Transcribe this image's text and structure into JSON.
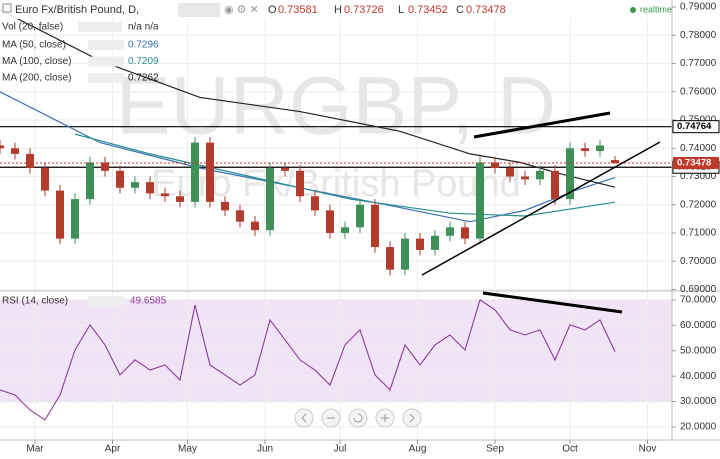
{
  "chart_data": [
    {
      "type": "candlestick",
      "title": "Euro Fx/British Pound, D,",
      "watermark": "EURGBP, D",
      "watermark_subtitle": "Euro Fx/British Pound",
      "status": "realtime",
      "ohlc_labels": [
        "O",
        "H",
        "L",
        "C"
      ],
      "up_color": "#3f8f58",
      "down_color": "#b23b2c",
      "x": [
        0,
        6,
        12,
        18,
        24,
        30,
        36,
        42,
        48,
        54,
        60,
        66,
        72,
        78,
        84,
        90,
        96,
        102,
        108,
        114,
        120,
        126,
        132,
        138,
        144,
        150,
        156,
        162,
        168,
        174,
        180,
        186,
        192,
        198,
        204,
        210,
        216,
        222,
        228,
        234,
        240,
        246
      ],
      "open": [
        0.741,
        0.74,
        0.738,
        0.733,
        0.725,
        0.708,
        0.722,
        0.735,
        0.732,
        0.726,
        0.728,
        0.724,
        0.723,
        0.721,
        0.742,
        0.721,
        0.718,
        0.714,
        0.711,
        0.733,
        0.732,
        0.723,
        0.718,
        0.71,
        0.712,
        0.72,
        0.705,
        0.697,
        0.708,
        0.704,
        0.709,
        0.712,
        0.708,
        0.735,
        0.733,
        0.73,
        0.729,
        0.732,
        0.722,
        0.74,
        0.739,
        0.73581
      ],
      "high": [
        0.743,
        0.742,
        0.74,
        0.735,
        0.727,
        0.724,
        0.737,
        0.737,
        0.734,
        0.73,
        0.73,
        0.726,
        0.725,
        0.744,
        0.744,
        0.723,
        0.72,
        0.716,
        0.735,
        0.735,
        0.734,
        0.725,
        0.72,
        0.714,
        0.722,
        0.722,
        0.707,
        0.71,
        0.71,
        0.711,
        0.714,
        0.714,
        0.737,
        0.737,
        0.735,
        0.732,
        0.734,
        0.734,
        0.742,
        0.742,
        0.743,
        0.73726
      ],
      "low": [
        0.738,
        0.736,
        0.731,
        0.723,
        0.706,
        0.706,
        0.72,
        0.73,
        0.724,
        0.724,
        0.722,
        0.721,
        0.719,
        0.719,
        0.719,
        0.716,
        0.712,
        0.709,
        0.709,
        0.73,
        0.721,
        0.716,
        0.708,
        0.708,
        0.71,
        0.703,
        0.695,
        0.695,
        0.702,
        0.702,
        0.707,
        0.706,
        0.706,
        0.731,
        0.728,
        0.727,
        0.727,
        0.72,
        0.72,
        0.737,
        0.737,
        0.73452
      ],
      "close": [
        0.74,
        0.738,
        0.733,
        0.725,
        0.708,
        0.722,
        0.735,
        0.732,
        0.726,
        0.728,
        0.724,
        0.723,
        0.721,
        0.742,
        0.721,
        0.718,
        0.714,
        0.711,
        0.733,
        0.732,
        0.723,
        0.718,
        0.71,
        0.712,
        0.72,
        0.705,
        0.697,
        0.708,
        0.704,
        0.709,
        0.712,
        0.708,
        0.735,
        0.733,
        0.73,
        0.729,
        0.732,
        0.722,
        0.74,
        0.739,
        0.741,
        0.73478
      ],
      "volume_indicator": {
        "name": "Vol (20, false)",
        "readout": "n/a n/a"
      },
      "series": [
        {
          "name": "MA (50, close)",
          "color": "#3b6fb6",
          "x": [
            0,
            40,
            80,
            120,
            160,
            188,
            210,
            230,
            246
          ],
          "values": [
            0.76,
            0.742,
            0.733,
            0.726,
            0.719,
            0.714,
            0.718,
            0.725,
            0.7296
          ]
        },
        {
          "name": "MA (100, close)",
          "color": "#2a8f8f",
          "x": [
            30,
            60,
            100,
            140,
            180,
            210,
            246
          ],
          "values": [
            0.745,
            0.738,
            0.73,
            0.722,
            0.717,
            0.716,
            0.7209
          ]
        },
        {
          "name": "MA (200, close)",
          "color": "#222222",
          "x": [
            0,
            40,
            80,
            120,
            160,
            188,
            208,
            224,
            246
          ],
          "values": [
            0.789,
            0.771,
            0.758,
            0.753,
            0.746,
            0.738,
            0.735,
            0.731,
            0.7262
          ]
        }
      ],
      "levels": [
        0.74764,
        0.73328
      ],
      "xlim": [
        0,
        268.8
      ],
      "ylim": [
        0.6898,
        0.7925
      ],
      "xticks": [
        {
          "value": 14,
          "label": "Mar"
        },
        {
          "value": 45,
          "label": "Apr"
        },
        {
          "value": 75,
          "label": "May"
        },
        {
          "value": 106,
          "label": "Jun"
        },
        {
          "value": 136,
          "label": "Jul"
        },
        {
          "value": 167,
          "label": "Aug"
        },
        {
          "value": 198,
          "label": "Sep"
        },
        {
          "value": 228,
          "label": "Oct"
        },
        {
          "value": 259,
          "label": "Nov"
        }
      ],
      "yticks": [
        {
          "value": 0.69,
          "label": "0.69000"
        },
        {
          "value": 0.7,
          "label": "0.70000"
        },
        {
          "value": 0.71,
          "label": "0.71000"
        },
        {
          "value": 0.72,
          "label": "0.72000"
        },
        {
          "value": 0.73,
          "label": "0.73000"
        },
        {
          "value": 0.74,
          "label": "0.74000"
        },
        {
          "value": 0.75,
          "label": "0.75000"
        },
        {
          "value": 0.76,
          "label": "0.76000"
        },
        {
          "value": 0.77,
          "label": "0.77000"
        },
        {
          "value": 0.78,
          "label": "0.78000"
        },
        {
          "value": 0.79,
          "label": "0.79000"
        }
      ],
      "grid": true
    },
    {
      "type": "line",
      "title": "RSI (14, close)",
      "color": "#8e3a9c",
      "band": [
        30,
        70
      ],
      "band_color": "#f1e4f7",
      "values": [
        34.6,
        32.6,
        26.7,
        22.8,
        32.6,
        50.3,
        60.2,
        52.3,
        40.5,
        46.4,
        42.4,
        44.4,
        38.5,
        68,
        44.4,
        40.5,
        36.5,
        40.5,
        62.1,
        54.3,
        46.4,
        42.4,
        36.5,
        52.3,
        58.2,
        40.5,
        34.6,
        52.3,
        44.4,
        52.3,
        56.2,
        50.3,
        70,
        66.1,
        58.2,
        56.2,
        58.2,
        46.4,
        60.2,
        58.2,
        62.1,
        49.6585
      ],
      "ylim": [
        14.9,
        73.1
      ],
      "yticks": [
        {
          "value": 20,
          "label": "20.0000"
        },
        {
          "value": 30,
          "label": "30.0000"
        },
        {
          "value": 40,
          "label": "40.0000"
        },
        {
          "value": 50,
          "label": "50.0000"
        },
        {
          "value": 60,
          "label": "60.0000"
        },
        {
          "value": 70,
          "label": "70.0000"
        }
      ]
    }
  ]
}
